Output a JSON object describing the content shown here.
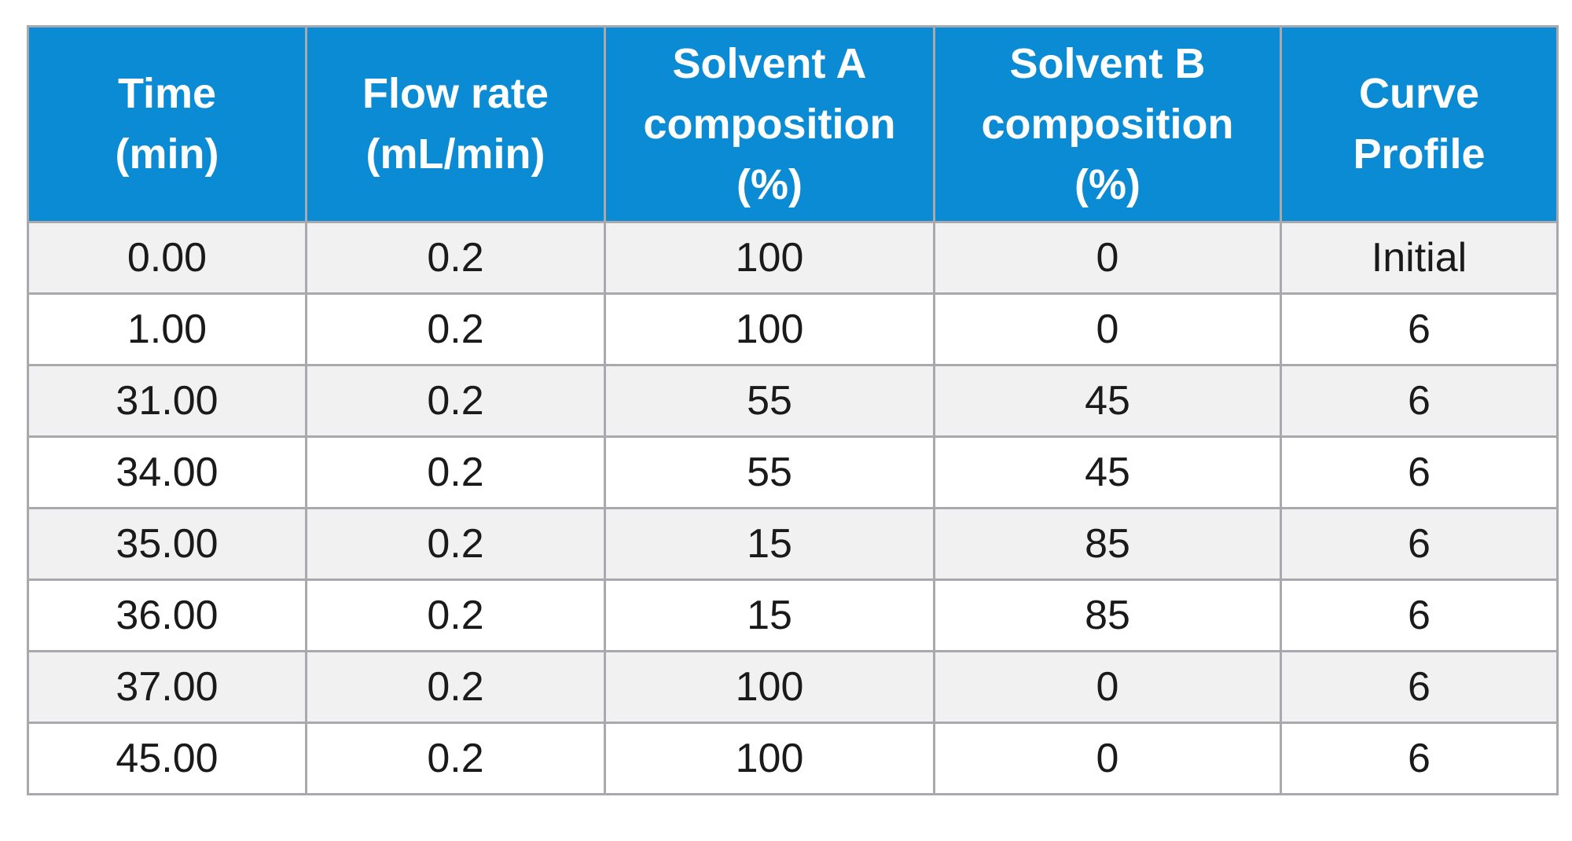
{
  "table": {
    "headers": [
      [
        "Time",
        "(min)"
      ],
      [
        "Flow rate",
        "(mL/min)"
      ],
      [
        "Solvent A",
        "composition",
        "(%)"
      ],
      [
        "Solvent B",
        "composition",
        "(%)"
      ],
      [
        "Curve",
        "Profile"
      ]
    ],
    "rows": [
      [
        "0.00",
        "0.2",
        "100",
        "0",
        "Initial"
      ],
      [
        "1.00",
        "0.2",
        "100",
        "0",
        "6"
      ],
      [
        "31.00",
        "0.2",
        "55",
        "45",
        "6"
      ],
      [
        "34.00",
        "0.2",
        "55",
        "45",
        "6"
      ],
      [
        "35.00",
        "0.2",
        "15",
        "85",
        "6"
      ],
      [
        "36.00",
        "0.2",
        "15",
        "85",
        "6"
      ],
      [
        "37.00",
        "0.2",
        "100",
        "0",
        "6"
      ],
      [
        "45.00",
        "0.2",
        "100",
        "0",
        "6"
      ]
    ]
  },
  "colors": {
    "header_bg": "#0b8bd4",
    "header_text": "#ffffff",
    "stripe": "#f1f1f2",
    "border": "#a7a9ac"
  }
}
